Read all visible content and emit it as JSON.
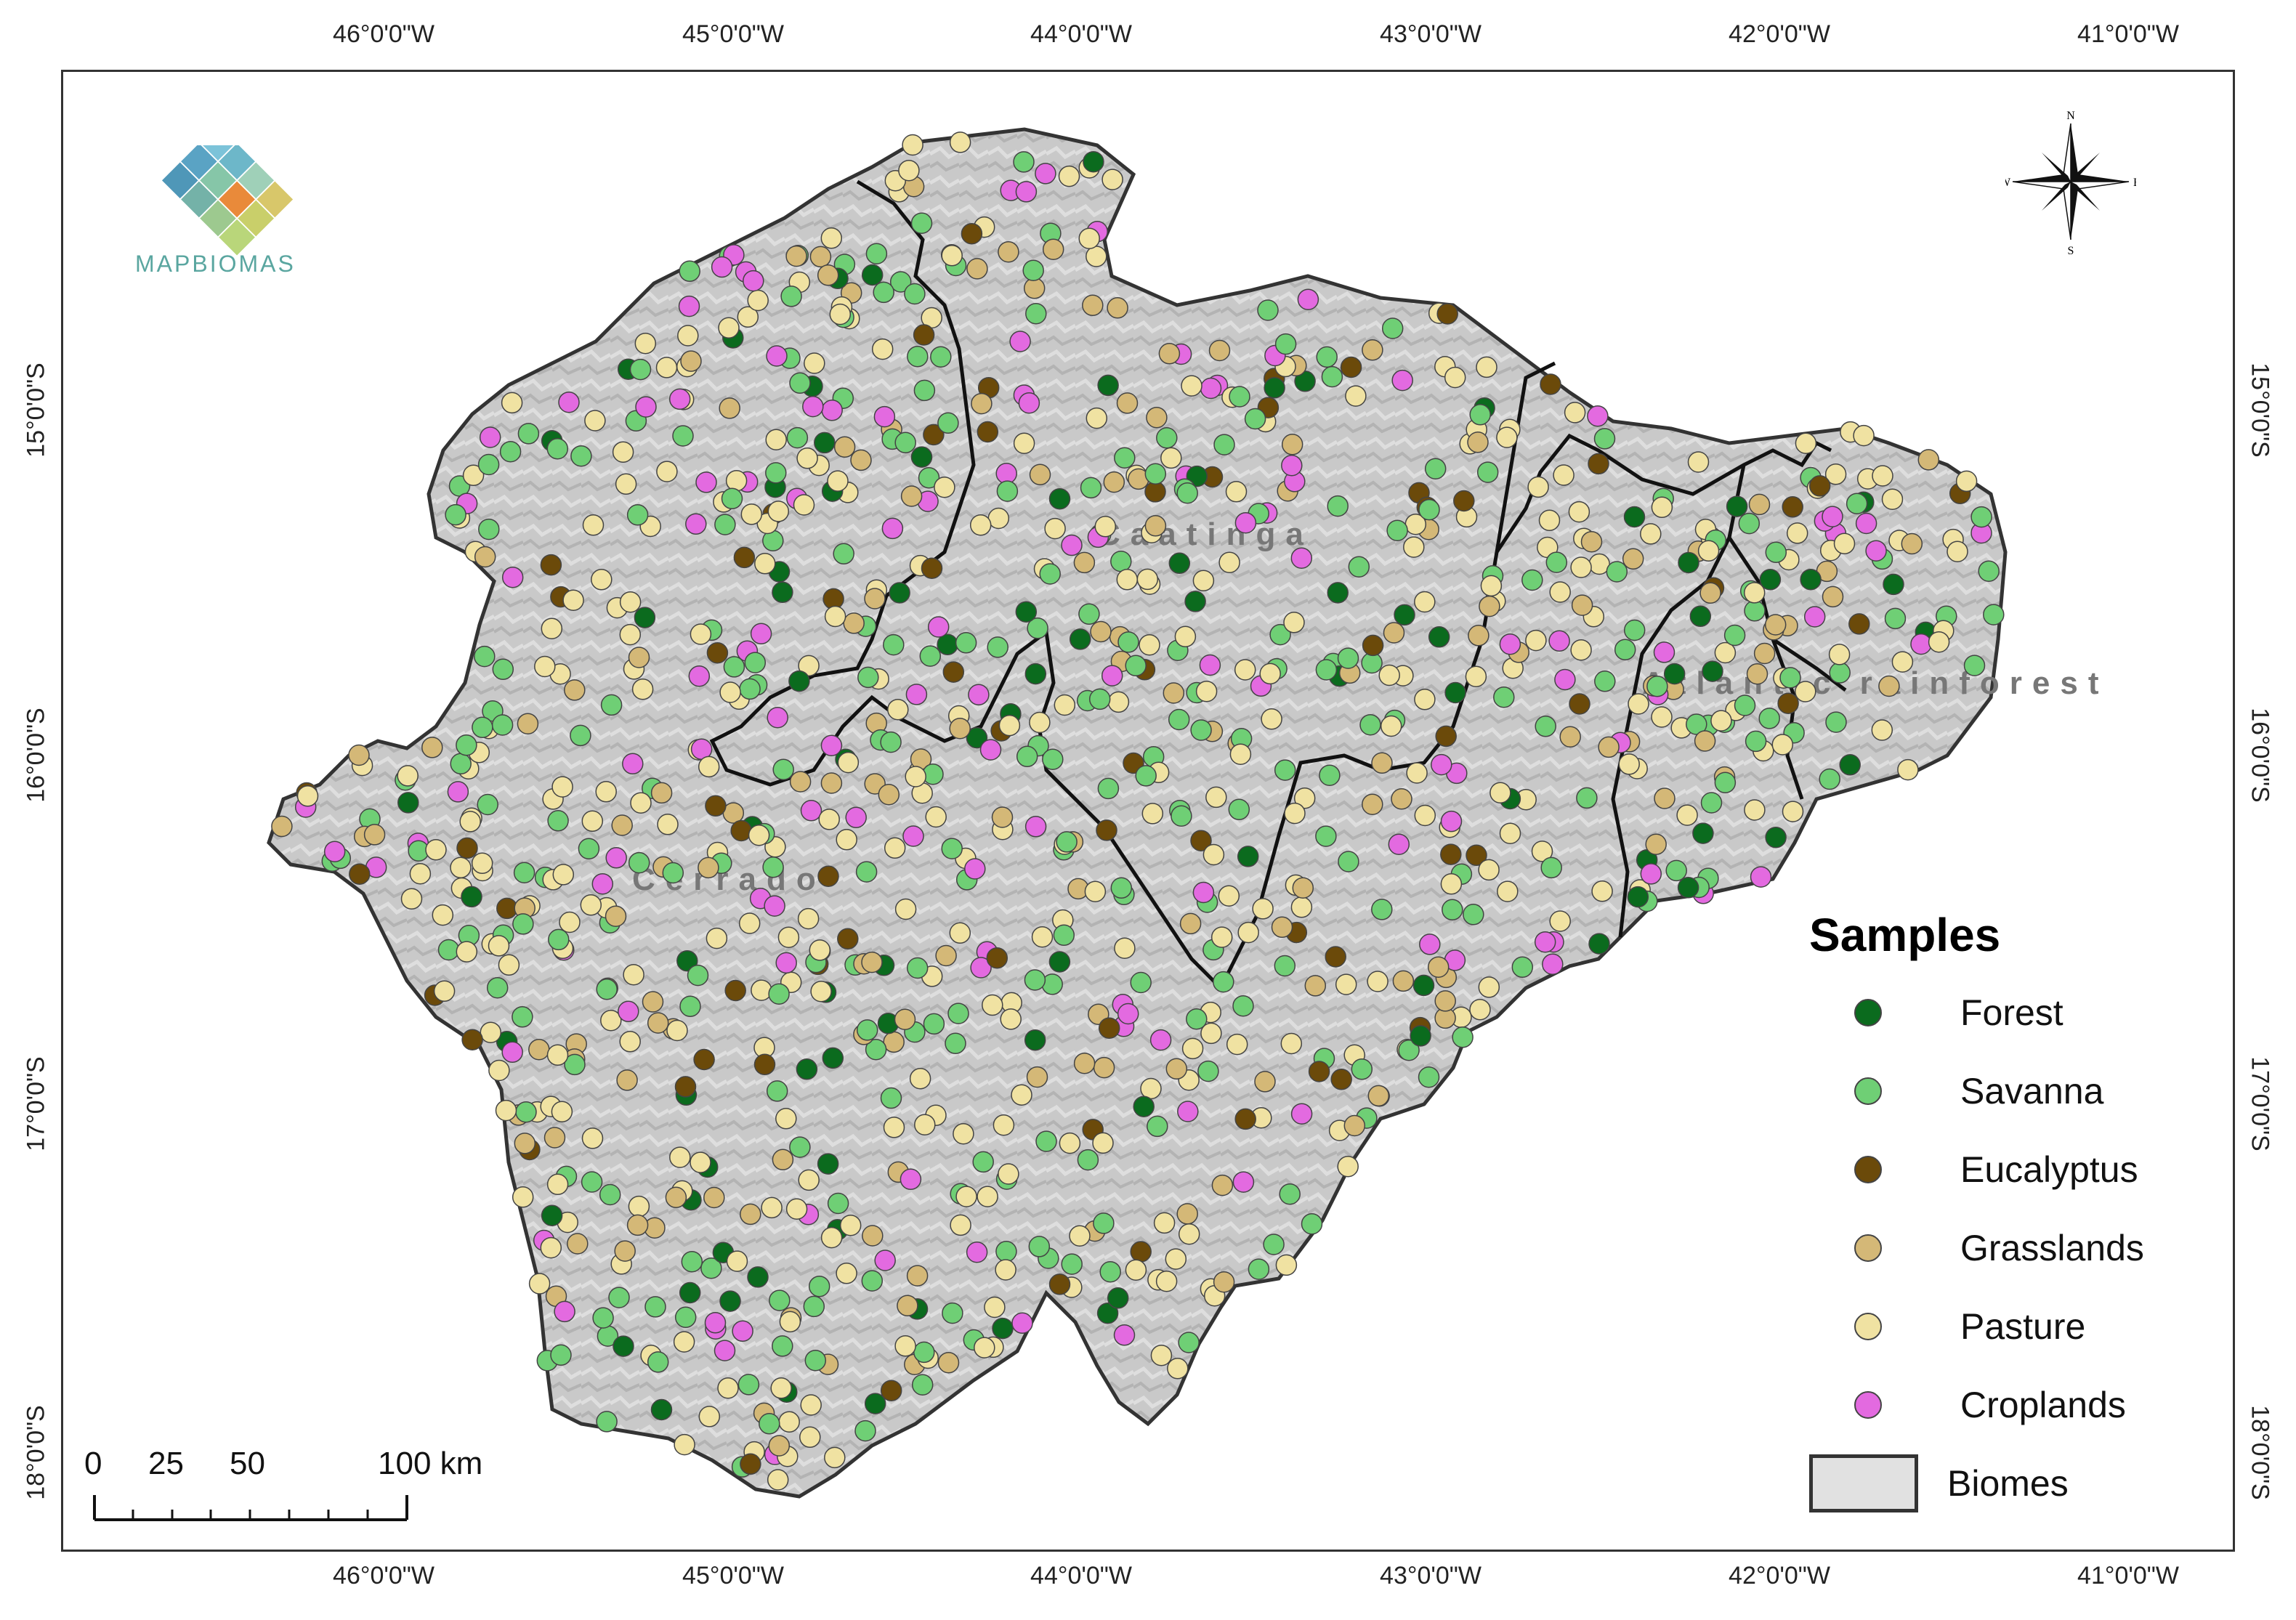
{
  "map": {
    "top_ticks": [
      "46°0'0\"W",
      "45°0'0\"W",
      "44°0'0\"W",
      "43°0'0\"W",
      "42°0'0\"W",
      "41°0'0\"W"
    ],
    "bottom_ticks": [
      "46°0'0\"W",
      "45°0'0\"W",
      "44°0'0\"W",
      "43°0'0\"W",
      "42°0'0\"W",
      "41°0'0\"W"
    ],
    "left_ticks": [
      "15°0'0\"S",
      "16°0'0\"S",
      "17°0'0\"S",
      "18°0'0\"S"
    ],
    "right_ticks": [
      "15°0'0\"S",
      "16°0'0\"S",
      "17°0'0\"S",
      "18°0'0\"S"
    ],
    "biome_labels": {
      "caatinga": "Caatinga",
      "cerrado": "Cerrado",
      "atlantic": "Atlantic rainforest"
    },
    "logo_text": "MAPBIOMAS",
    "compass": {
      "n": "N",
      "s": "S",
      "e": "E",
      "w": "W"
    },
    "scale": {
      "labels": [
        "0",
        "25",
        "50",
        "100 km"
      ]
    }
  },
  "legend": {
    "title": "Samples",
    "items": [
      {
        "label": "Forest",
        "color": "#0b6b1e"
      },
      {
        "label": "Savanna",
        "color": "#6fcf75"
      },
      {
        "label": "Eucalyptus",
        "color": "#6b4a0a"
      },
      {
        "label": "Grasslands",
        "color": "#d4b877"
      },
      {
        "label": "Pasture",
        "color": "#f0e2a2"
      },
      {
        "label": "Croplands",
        "color": "#e36ae0"
      }
    ],
    "biomes_label": "Biomes",
    "biomes_color": "#e1e1e1"
  }
}
